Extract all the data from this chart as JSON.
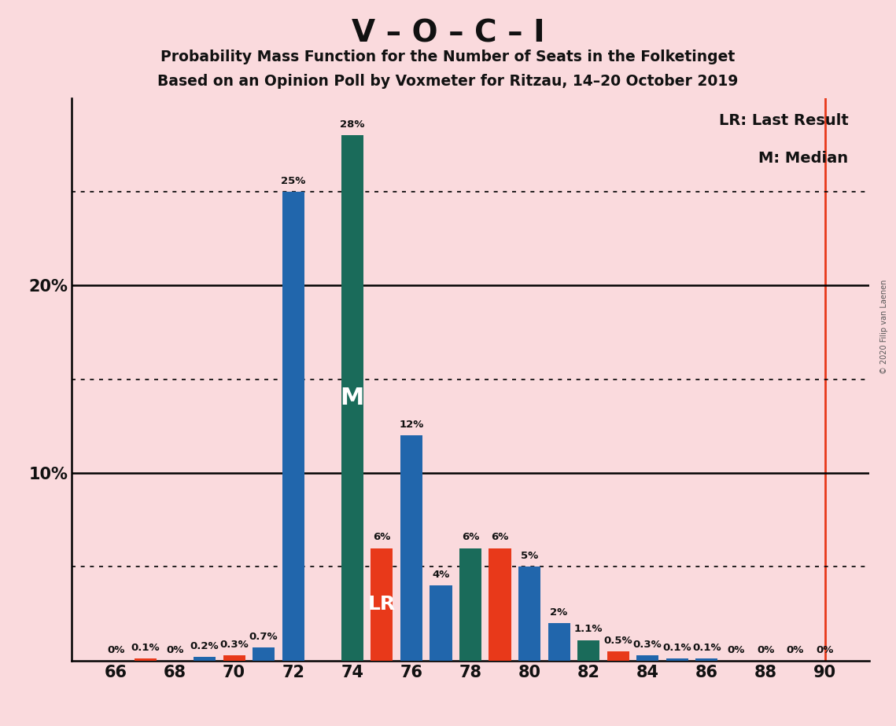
{
  "title_main": "V – O – C – I",
  "title_line1": "Probability Mass Function for the Number of Seats in the Folketinget",
  "title_line2": "Based on an Opinion Poll by Voxmeter for Ritzau, 14–20 October 2019",
  "copyright": "© 2020 Filip van Laenen",
  "seats": [
    66,
    67,
    68,
    69,
    70,
    71,
    72,
    73,
    74,
    75,
    76,
    77,
    78,
    79,
    80,
    81,
    82,
    83,
    84,
    85,
    86,
    87,
    88,
    89,
    90
  ],
  "values": [
    0.0,
    0.1,
    0.0,
    0.2,
    0.3,
    0.7,
    25.0,
    0.0,
    28.0,
    6.0,
    12.0,
    4.0,
    6.0,
    6.0,
    5.0,
    2.0,
    1.1,
    0.5,
    0.3,
    0.1,
    0.1,
    0.0,
    0.0,
    0.0,
    0.0
  ],
  "labels": [
    "0%",
    "0.1%",
    "0%",
    "0.2%",
    "0.3%",
    "0.7%",
    "25%",
    "",
    "28%",
    "6%",
    "12%",
    "4%",
    "6%",
    "6%",
    "5%",
    "2%",
    "1.1%",
    "0.5%",
    "0.3%",
    "0.1%",
    "0.1%",
    "0%",
    "0%",
    "0%",
    "0%"
  ],
  "colors": [
    "#2166ac",
    "#e8391a",
    "#2166ac",
    "#2166ac",
    "#e8391a",
    "#2166ac",
    "#2166ac",
    "#1a6b5a",
    "#1a6b5a",
    "#e8391a",
    "#2166ac",
    "#2166ac",
    "#1a6b5a",
    "#e8391a",
    "#2166ac",
    "#2166ac",
    "#1a6b5a",
    "#e8391a",
    "#2166ac",
    "#2166ac",
    "#2166ac",
    "#2166ac",
    "#2166ac",
    "#2166ac",
    "#2166ac"
  ],
  "median_seat": 74,
  "lr_seat": 75,
  "vline_seat": 90,
  "background_color": "#fadadd",
  "bar_width": 0.75,
  "ylim": [
    0,
    30
  ],
  "dotted_lines": [
    5,
    15,
    25
  ],
  "solid_lines": [
    10,
    20
  ],
  "font_color": "#111111",
  "lr_legend": "LR: Last Result",
  "m_legend": "M: Median"
}
